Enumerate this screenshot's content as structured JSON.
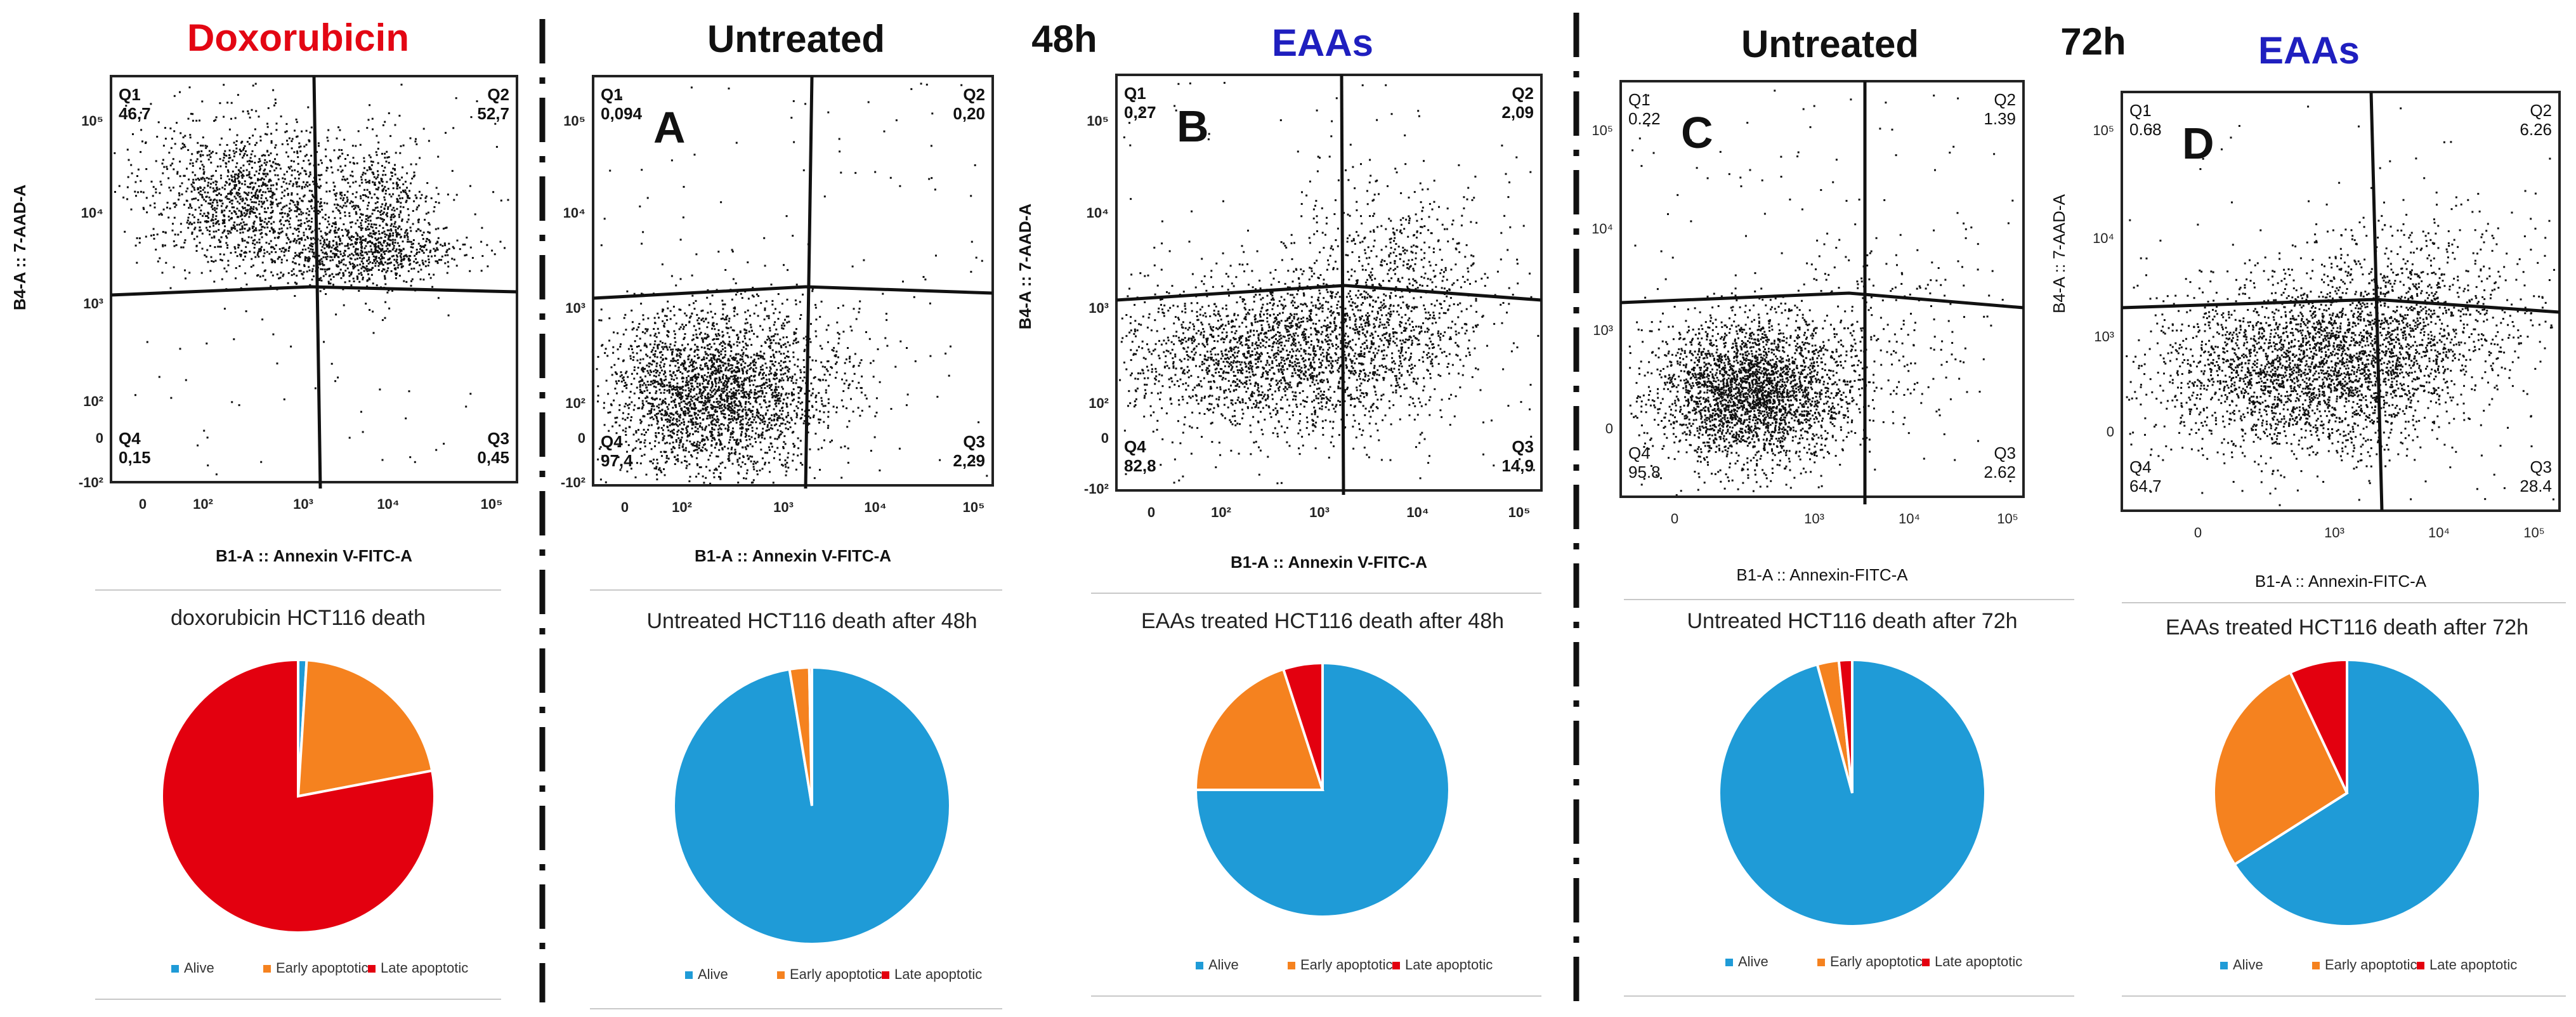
{
  "headers": {
    "doxorubicin": "Doxorubicin",
    "untreated_48": "Untreated",
    "time_48": "48h",
    "eaas_48": "EAAs",
    "untreated_72": "Untreated",
    "time_72": "72h",
    "eaas_72": "EAAs"
  },
  "colors": {
    "red_header": "#e30613",
    "blue_header": "#1f1fbf",
    "alive": "#1f9bd7",
    "early": "#f5821f",
    "late": "#e3000f"
  },
  "legend": {
    "alive": "Alive",
    "early": "Early apoptotic",
    "late": "Late apoptotic"
  },
  "chart_data": [
    {
      "type": "scatter",
      "panel": "",
      "ylabel": "B4-A :: 7-AAD-A",
      "xlabel": "B1-A :: Annexin V-FITC-A",
      "x_ticks": [
        "0",
        "10²",
        "10³",
        "10⁴",
        "10⁵"
      ],
      "y_ticks": [
        "10⁵",
        "10⁴",
        "10³",
        "10²",
        "0",
        "-10²"
      ],
      "quadrants": [
        {
          "name": "Q1",
          "value": "46,7"
        },
        {
          "name": "Q2",
          "value": "52,7"
        },
        {
          "name": "Q3",
          "value": "0,45"
        },
        {
          "name": "Q4",
          "value": "0,15"
        }
      ]
    },
    {
      "type": "scatter",
      "panel": "A",
      "ylabel": "",
      "xlabel": "B1-A :: Annexin V-FITC-A",
      "x_ticks": [
        "0",
        "10²",
        "10³",
        "10⁴",
        "10⁵"
      ],
      "y_ticks": [
        "10⁵",
        "10⁴",
        "10³",
        "10²",
        "0",
        "-10²"
      ],
      "quadrants": [
        {
          "name": "Q1",
          "value": "0,094"
        },
        {
          "name": "Q2",
          "value": "0,20"
        },
        {
          "name": "Q3",
          "value": "2,29"
        },
        {
          "name": "Q4",
          "value": "97,4"
        }
      ]
    },
    {
      "type": "scatter",
      "panel": "B",
      "ylabel": "B4-A :: 7-AAD-A",
      "xlabel": "B1-A :: Annexin V-FITC-A",
      "x_ticks": [
        "0",
        "10²",
        "10³",
        "10⁴",
        "10⁵"
      ],
      "y_ticks": [
        "10⁵",
        "10⁴",
        "10³",
        "10²",
        "0",
        "-10²"
      ],
      "quadrants": [
        {
          "name": "Q1",
          "value": "0,27"
        },
        {
          "name": "Q2",
          "value": "2,09"
        },
        {
          "name": "Q3",
          "value": "14,9"
        },
        {
          "name": "Q4",
          "value": "82,8"
        }
      ]
    },
    {
      "type": "scatter",
      "panel": "C",
      "ylabel": "",
      "xlabel": "B1-A :: Annexin-FITC-A",
      "x_ticks": [
        "0",
        "10³",
        "10⁴",
        "10⁵"
      ],
      "y_ticks": [
        "10⁵",
        "10⁴",
        "10³",
        "0"
      ],
      "quadrants": [
        {
          "name": "Q1",
          "value": "0.22"
        },
        {
          "name": "Q2",
          "value": "1.39"
        },
        {
          "name": "Q3",
          "value": "2.62"
        },
        {
          "name": "Q4",
          "value": "95.8"
        }
      ]
    },
    {
      "type": "scatter",
      "panel": "D",
      "ylabel": "B4-A :: 7-AAD-A",
      "xlabel": "B1-A :: Annexin-FITC-A",
      "x_ticks": [
        "0",
        "10³",
        "10⁴",
        "10⁵"
      ],
      "y_ticks": [
        "10⁵",
        "10⁴",
        "10³",
        "0"
      ],
      "quadrants": [
        {
          "name": "Q1",
          "value": "0.68"
        },
        {
          "name": "Q2",
          "value": "6.26"
        },
        {
          "name": "Q3",
          "value": "28.4"
        },
        {
          "name": "Q4",
          "value": "64.7"
        }
      ]
    },
    {
      "type": "pie",
      "title": "doxorubicin HCT116 death",
      "labels": [
        "Alive",
        "Early apoptotic",
        "Late apoptotic"
      ],
      "values": [
        1,
        21,
        78
      ]
    },
    {
      "type": "pie",
      "title": "Untreated HCT116 death after 48h",
      "labels": [
        "Alive",
        "Early apoptotic",
        "Late apoptotic"
      ],
      "values": [
        97.4,
        2.29,
        0.31
      ]
    },
    {
      "type": "pie",
      "title": "EAAs treated HCT116 death after 48h",
      "labels": [
        "Alive",
        "Early apoptotic",
        "Late apoptotic"
      ],
      "values": [
        75,
        20,
        5
      ]
    },
    {
      "type": "pie",
      "title": "Untreated HCT116 death after 72h",
      "labels": [
        "Alive",
        "Early apoptotic",
        "Late apoptotic"
      ],
      "values": [
        95.8,
        2.62,
        1.61
      ]
    },
    {
      "type": "pie",
      "title": "EAAs treated HCT116 death after 72h",
      "labels": [
        "Alive",
        "Early apoptotic",
        "Late apoptotic"
      ],
      "values": [
        66,
        27,
        7
      ]
    }
  ]
}
